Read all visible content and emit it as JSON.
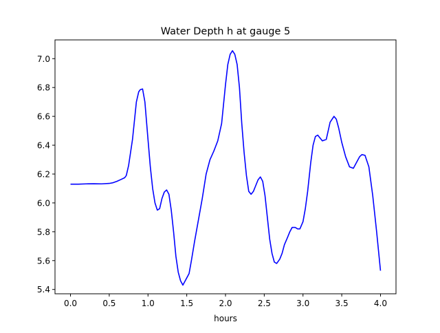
{
  "chart_data": {
    "type": "line",
    "title": "Water Depth h at gauge 5",
    "xlabel": "hours",
    "ylabel": "",
    "xlim": [
      -0.2,
      4.2
    ],
    "ylim": [
      5.37,
      7.13
    ],
    "xticks": [
      0.0,
      0.5,
      1.0,
      1.5,
      2.0,
      2.5,
      3.0,
      3.5,
      4.0
    ],
    "xtick_labels": [
      "0.0",
      "0.5",
      "1.0",
      "1.5",
      "2.0",
      "2.5",
      "3.0",
      "3.5",
      "4.0"
    ],
    "yticks": [
      5.4,
      5.6,
      5.8,
      6.0,
      6.2,
      6.4,
      6.6,
      6.8,
      7.0
    ],
    "ytick_labels": [
      "5.4",
      "5.6",
      "5.8",
      "6.0",
      "6.2",
      "6.4",
      "6.6",
      "6.8",
      "7.0"
    ],
    "grid": false,
    "series": [
      {
        "color": "#0000ff",
        "x": [
          0.0,
          0.1,
          0.2,
          0.3,
          0.4,
          0.5,
          0.55,
          0.6,
          0.65,
          0.7,
          0.72,
          0.75,
          0.8,
          0.85,
          0.88,
          0.9,
          0.93,
          0.96,
          1.0,
          1.03,
          1.06,
          1.09,
          1.12,
          1.15,
          1.18,
          1.21,
          1.24,
          1.27,
          1.3,
          1.33,
          1.36,
          1.39,
          1.42,
          1.45,
          1.48,
          1.5,
          1.53,
          1.56,
          1.6,
          1.65,
          1.7,
          1.75,
          1.8,
          1.85,
          1.9,
          1.95,
          2.0,
          2.03,
          2.06,
          2.09,
          2.12,
          2.15,
          2.18,
          2.21,
          2.24,
          2.27,
          2.3,
          2.33,
          2.36,
          2.39,
          2.42,
          2.45,
          2.48,
          2.51,
          2.54,
          2.57,
          2.6,
          2.63,
          2.66,
          2.7,
          2.73,
          2.76,
          2.8,
          2.83,
          2.86,
          2.9,
          2.93,
          2.96,
          3.0,
          3.03,
          3.06,
          3.1,
          3.13,
          3.16,
          3.19,
          3.22,
          3.25,
          3.3,
          3.35,
          3.4,
          3.43,
          3.46,
          3.5,
          3.55,
          3.6,
          3.65,
          3.7,
          3.73,
          3.76,
          3.8,
          3.85,
          3.9,
          3.95,
          4.0
        ],
        "y": [
          6.13,
          6.13,
          6.132,
          6.133,
          6.132,
          6.135,
          6.14,
          6.15,
          6.162,
          6.175,
          6.19,
          6.26,
          6.44,
          6.7,
          6.77,
          6.785,
          6.79,
          6.7,
          6.44,
          6.25,
          6.1,
          6.0,
          5.95,
          5.96,
          6.03,
          6.075,
          6.09,
          6.06,
          5.95,
          5.8,
          5.63,
          5.52,
          5.46,
          5.43,
          5.46,
          5.48,
          5.51,
          5.6,
          5.73,
          5.88,
          6.03,
          6.2,
          6.3,
          6.36,
          6.43,
          6.55,
          6.82,
          6.96,
          7.03,
          7.055,
          7.03,
          6.96,
          6.8,
          6.55,
          6.35,
          6.19,
          6.08,
          6.06,
          6.08,
          6.12,
          6.16,
          6.18,
          6.15,
          6.05,
          5.9,
          5.75,
          5.65,
          5.59,
          5.58,
          5.61,
          5.65,
          5.71,
          5.76,
          5.8,
          5.83,
          5.83,
          5.82,
          5.82,
          5.87,
          5.96,
          6.08,
          6.28,
          6.4,
          6.46,
          6.47,
          6.45,
          6.43,
          6.44,
          6.56,
          6.6,
          6.58,
          6.52,
          6.42,
          6.32,
          6.25,
          6.24,
          6.29,
          6.32,
          6.335,
          6.33,
          6.25,
          6.05,
          5.8,
          5.53
        ]
      }
    ]
  }
}
